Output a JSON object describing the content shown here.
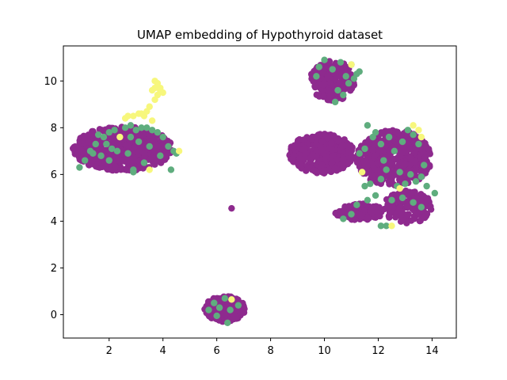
{
  "chart_data": {
    "type": "scatter",
    "title": "UMAP embedding of Hypothyroid dataset",
    "xlabel": "",
    "ylabel": "",
    "xlim": [
      0.3,
      14.9
    ],
    "ylim": [
      -1.0,
      11.5
    ],
    "xticks": [
      2,
      4,
      6,
      8,
      10,
      12,
      14
    ],
    "yticks": [
      0,
      2,
      4,
      6,
      8,
      10
    ],
    "grid": false,
    "legend": "none",
    "colors": {
      "purple": "#8e2a8e",
      "green": "#5fad7e",
      "yellow": "#f7f77c"
    },
    "clusters": [
      {
        "color": "purple",
        "cx": 2.5,
        "cy": 7.1,
        "rx": 1.85,
        "ry": 0.95,
        "n": 650
      },
      {
        "color": "purple",
        "cx": 10.3,
        "cy": 10.0,
        "rx": 0.85,
        "ry": 0.85,
        "n": 220
      },
      {
        "color": "purple",
        "cx": 9.9,
        "cy": 6.9,
        "rx": 1.2,
        "ry": 0.85,
        "n": 320
      },
      {
        "color": "purple",
        "cx": 12.6,
        "cy": 6.7,
        "rx": 1.4,
        "ry": 1.2,
        "n": 500
      },
      {
        "color": "purple",
        "cx": 11.3,
        "cy": 4.4,
        "rx": 0.9,
        "ry": 0.35,
        "n": 120
      },
      {
        "color": "purple",
        "cx": 13.1,
        "cy": 4.6,
        "rx": 0.9,
        "ry": 0.7,
        "n": 140
      },
      {
        "color": "purple",
        "cx": 6.3,
        "cy": 0.25,
        "rx": 0.75,
        "ry": 0.55,
        "n": 260
      },
      {
        "color": "purple",
        "cx": 6.55,
        "cy": 4.55,
        "rx": 0.0,
        "ry": 0.0,
        "n": 1
      }
    ],
    "green_points": [
      [
        0.9,
        6.3
      ],
      [
        1.1,
        6.6
      ],
      [
        1.3,
        7.0
      ],
      [
        1.5,
        7.3
      ],
      [
        1.6,
        7.7
      ],
      [
        1.8,
        7.6
      ],
      [
        2.0,
        7.8
      ],
      [
        2.2,
        7.9
      ],
      [
        1.9,
        7.3
      ],
      [
        2.1,
        7.1
      ],
      [
        1.7,
        6.8
      ],
      [
        2.6,
        8.0
      ],
      [
        2.8,
        8.1
      ],
      [
        3.0,
        7.9
      ],
      [
        3.2,
        8.0
      ],
      [
        3.4,
        8.0
      ],
      [
        3.6,
        7.9
      ],
      [
        3.8,
        7.8
      ],
      [
        4.0,
        7.6
      ],
      [
        4.2,
        7.2
      ],
      [
        4.4,
        7.0
      ],
      [
        4.5,
        6.9
      ],
      [
        4.3,
        6.2
      ],
      [
        2.9,
        6.1
      ],
      [
        2.9,
        6.2
      ],
      [
        3.3,
        6.5
      ],
      [
        2.8,
        7.6
      ],
      [
        3.1,
        7.4
      ],
      [
        2.7,
        6.9
      ],
      [
        2.3,
        7.0
      ],
      [
        3.5,
        7.2
      ],
      [
        3.9,
        6.8
      ],
      [
        1.4,
        6.9
      ],
      [
        2.0,
        6.6
      ],
      [
        9.7,
        10.2
      ],
      [
        9.8,
        10.6
      ],
      [
        10.0,
        10.9
      ],
      [
        10.3,
        10.5
      ],
      [
        10.6,
        10.8
      ],
      [
        10.8,
        10.2
      ],
      [
        11.0,
        10.7
      ],
      [
        11.2,
        10.3
      ],
      [
        10.5,
        9.6
      ],
      [
        10.7,
        9.4
      ],
      [
        10.9,
        9.9
      ],
      [
        11.1,
        10.1
      ],
      [
        10.4,
        9.1
      ],
      [
        11.3,
        10.4
      ],
      [
        11.6,
        8.1
      ],
      [
        11.9,
        7.8
      ],
      [
        12.1,
        7.3
      ],
      [
        11.5,
        7.1
      ],
      [
        11.3,
        6.9
      ],
      [
        12.4,
        7.6
      ],
      [
        12.6,
        7.0
      ],
      [
        12.9,
        7.4
      ],
      [
        13.1,
        7.9
      ],
      [
        13.3,
        7.7
      ],
      [
        13.5,
        7.3
      ],
      [
        12.8,
        6.1
      ],
      [
        13.2,
        6.0
      ],
      [
        13.4,
        5.7
      ],
      [
        13.6,
        5.9
      ],
      [
        13.8,
        5.5
      ],
      [
        14.1,
        5.2
      ],
      [
        13.0,
        5.6
      ],
      [
        12.7,
        5.5
      ],
      [
        12.3,
        6.2
      ],
      [
        12.1,
        5.8
      ],
      [
        11.7,
        5.6
      ],
      [
        11.4,
        6.1
      ],
      [
        11.9,
        5.1
      ],
      [
        11.6,
        4.9
      ],
      [
        11.2,
        4.7
      ],
      [
        11.0,
        4.3
      ],
      [
        10.7,
        4.1
      ],
      [
        12.1,
        3.8
      ],
      [
        12.3,
        3.8
      ],
      [
        12.9,
        5.0
      ],
      [
        13.3,
        4.8
      ],
      [
        13.6,
        4.6
      ],
      [
        12.5,
        4.9
      ],
      [
        12.2,
        6.6
      ],
      [
        11.8,
        7.6
      ],
      [
        13.7,
        6.4
      ],
      [
        11.5,
        5.5
      ],
      [
        5.7,
        0.2
      ],
      [
        5.9,
        0.5
      ],
      [
        6.1,
        0.3
      ],
      [
        6.3,
        0.7
      ],
      [
        6.5,
        0.2
      ],
      [
        6.4,
        -0.35
      ],
      [
        6.8,
        0.4
      ],
      [
        6.0,
        -0.05
      ]
    ],
    "yellow_points": [
      [
        3.7,
        10.0
      ],
      [
        3.8,
        9.9
      ],
      [
        3.7,
        9.7
      ],
      [
        3.6,
        9.6
      ],
      [
        3.8,
        9.4
      ],
      [
        3.9,
        9.6
      ],
      [
        3.7,
        9.2
      ],
      [
        3.5,
        8.9
      ],
      [
        3.4,
        8.7
      ],
      [
        3.3,
        8.5
      ],
      [
        3.1,
        8.6
      ],
      [
        2.9,
        8.5
      ],
      [
        2.7,
        8.5
      ],
      [
        2.6,
        8.4
      ],
      [
        3.6,
        8.3
      ],
      [
        3.9,
        9.7
      ],
      [
        4.0,
        9.5
      ],
      [
        3.2,
        8.6
      ],
      [
        2.4,
        7.6
      ],
      [
        4.6,
        7.0
      ],
      [
        3.5,
        6.2
      ],
      [
        11.0,
        10.7
      ],
      [
        13.3,
        8.1
      ],
      [
        13.5,
        7.9
      ],
      [
        13.6,
        7.6
      ],
      [
        11.4,
        6.1
      ],
      [
        12.8,
        5.4
      ],
      [
        12.5,
        3.8
      ],
      [
        6.55,
        0.65
      ]
    ]
  }
}
